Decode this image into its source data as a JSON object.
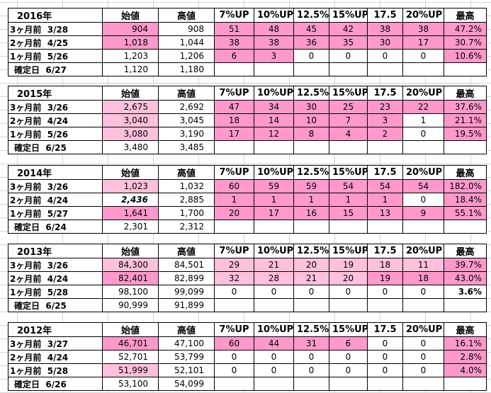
{
  "headers": {
    "start": "始値",
    "high": "高値",
    "p7": "7%UP",
    "p10": "10%UP",
    "p125": "12.5%",
    "p15": "15%UP",
    "p175": "17.5",
    "p20": "20%UP",
    "max": "最高"
  },
  "blocks": [
    {
      "year": "2016年",
      "rows": [
        {
          "label": "3ヶ月前",
          "date": "3/28",
          "start": "904",
          "high": "908",
          "p7": "51",
          "p10": "48",
          "p125": "45",
          "p15": "42",
          "p175": "38",
          "p20": "38",
          "max": "47.2%"
        },
        {
          "label": "2ヶ月前",
          "date": "4/25",
          "start": "1,018",
          "high": "1,044",
          "p7": "38",
          "p10": "38",
          "p125": "36",
          "p15": "35",
          "p175": "30",
          "p20": "17",
          "max": "30.7%"
        },
        {
          "label": "1ヶ月前",
          "date": "5/26",
          "start": "1,203",
          "high": "1,206",
          "p7": "6",
          "p10": "3",
          "p125": "0",
          "p15": "0",
          "p175": "0",
          "p20": "0",
          "max": "10.6%"
        }
      ],
      "confirm": {
        "label": "確定日",
        "date": "6/27",
        "start": "1,120",
        "high": "1,180"
      }
    },
    {
      "year": "2015年",
      "rows": [
        {
          "label": "3ヶ月前",
          "date": "3/26",
          "start": "2,675",
          "high": "2,692",
          "p7": "47",
          "p10": "34",
          "p125": "30",
          "p15": "25",
          "p175": "23",
          "p20": "22",
          "max": "37.6%"
        },
        {
          "label": "2ヶ月前",
          "date": "4/24",
          "start": "3,040",
          "high": "3,045",
          "p7": "18",
          "p10": "14",
          "p125": "10",
          "p15": "7",
          "p175": "3",
          "p20": "1",
          "max": "21.1%"
        },
        {
          "label": "1ヶ月前",
          "date": "5/26",
          "start": "3,080",
          "high": "3,190",
          "p7": "17",
          "p10": "12",
          "p125": "8",
          "p15": "4",
          "p175": "2",
          "p20": "0",
          "max": "19.5%"
        }
      ],
      "confirm": {
        "label": "確定日",
        "date": "6/25",
        "start": "3,480",
        "high": "3,485"
      }
    },
    {
      "year": "2014年",
      "rows": [
        {
          "label": "3ヶ月前",
          "date": "3/26",
          "start": "1,023",
          "high": "1,032",
          "p7": "60",
          "p10": "59",
          "p125": "59",
          "p15": "54",
          "p175": "54",
          "p20": "54",
          "max": "182.0%"
        },
        {
          "label": "2ヶ月前",
          "date": "4/24",
          "start": "2,436",
          "high": "2,885",
          "p7": "1",
          "p10": "1",
          "p125": "1",
          "p15": "1",
          "p175": "1",
          "p20": "0",
          "max": "18.4%"
        },
        {
          "label": "1ヶ月前",
          "date": "5/27",
          "start": "1,641",
          "high": "1,700",
          "p7": "20",
          "p10": "17",
          "p125": "16",
          "p15": "15",
          "p175": "13",
          "p20": "9",
          "max": "55.1%"
        }
      ],
      "confirm": {
        "label": "確定日",
        "date": "6/24",
        "start": "2,301",
        "high": "2,312"
      }
    },
    {
      "year": "2013年",
      "rows": [
        {
          "label": "3ヶ月前",
          "date": "3/26",
          "start": "84,300",
          "high": "84,501",
          "p7": "29",
          "p10": "21",
          "p125": "20",
          "p15": "19",
          "p175": "18",
          "p20": "11",
          "max": "39.7%"
        },
        {
          "label": "2ヶ月前",
          "date": "4/24",
          "start": "82,401",
          "high": "82,899",
          "p7": "32",
          "p10": "28",
          "p125": "21",
          "p15": "20",
          "p175": "19",
          "p20": "18",
          "max": "43.0%"
        },
        {
          "label": "1ヶ月前",
          "date": "5/28",
          "start": "98,100",
          "high": "99,099",
          "p7": "0",
          "p10": "0",
          "p125": "0",
          "p15": "0",
          "p175": "0",
          "p20": "0",
          "max": "3.6%"
        }
      ],
      "confirm": {
        "label": "確定日",
        "date": "6/25",
        "start": "90,999",
        "high": "91,899"
      }
    },
    {
      "year": "2012年",
      "rows": [
        {
          "label": "3ヶ月前",
          "date": "3/27",
          "start": "46,701",
          "high": "47,100",
          "p7": "60",
          "p10": "44",
          "p125": "31",
          "p15": "6",
          "p175": "0",
          "p20": "0",
          "max": "16.1%"
        },
        {
          "label": "2ヶ月前",
          "date": "4/24",
          "start": "52,701",
          "high": "53,799",
          "p7": "0",
          "p10": "0",
          "p125": "0",
          "p15": "0",
          "p175": "0",
          "p20": "0",
          "max": "2.8%"
        },
        {
          "label": "1ヶ月前",
          "date": "5/28",
          "start": "51,999",
          "high": "52,101",
          "p7": "0",
          "p10": "0",
          "p125": "0",
          "p15": "0",
          "p175": "0",
          "p20": "0",
          "max": "4.0%"
        }
      ],
      "confirm": {
        "label": "確定日",
        "date": "6/26",
        "start": "53,100",
        "high": "54,099"
      }
    }
  ]
}
